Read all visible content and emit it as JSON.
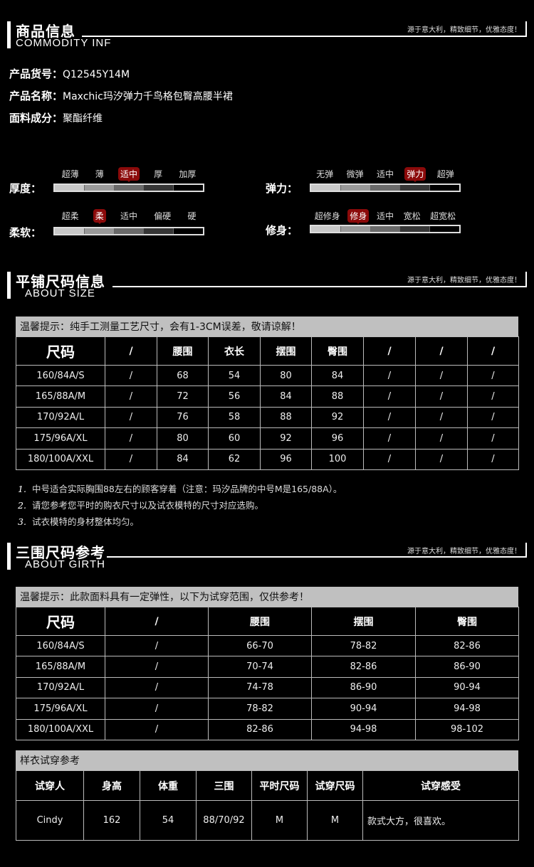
{
  "slogan": "源于意大利，精致细节，优雅态度！",
  "sections": [
    {
      "title": "商品信息",
      "subtitle": "COMMODITY INF"
    },
    {
      "title": "平铺尺码信息",
      "subtitle": "ABOUT SIZE"
    },
    {
      "title": "三围尺码参考",
      "subtitle": "ABOUT GIRTH"
    }
  ],
  "info": [
    {
      "label": "产品货号：",
      "value": "Q12545Y14M"
    },
    {
      "label": "产品名称：",
      "value": "Maxchic玛汐弹力千鸟格包臀高腰半裙"
    },
    {
      "label": "面料成分：",
      "value": "聚酯纤维"
    }
  ],
  "attributes": [
    {
      "label": "厚度：",
      "options": [
        "超薄",
        "薄",
        "适中",
        "厚",
        "加厚"
      ],
      "selected": 2
    },
    {
      "label": "弹力：",
      "options": [
        "无弹",
        "微弹",
        "适中",
        "弹力",
        "超弹"
      ],
      "selected": 3
    },
    {
      "label": "柔软：",
      "options": [
        "超柔",
        "柔",
        "适中",
        "偏硬",
        "硬"
      ],
      "selected": 1
    },
    {
      "label": "修身：",
      "options": [
        "超修身",
        "修身",
        "适中",
        "宽松",
        "超宽松"
      ],
      "selected": 1
    }
  ],
  "colors": {
    "highlight": "#8b0a0a",
    "tip_bar": "#c0c0c0"
  },
  "flat_size": {
    "tip": "温馨提示：纯手工测量工艺尺寸，会有1-3CM误差，敬请谅解！",
    "headers": [
      "尺码",
      "/",
      "腰围",
      "衣长",
      "摆围",
      "臀围",
      "/",
      "/",
      "/"
    ],
    "rows": [
      [
        "160/84A/S",
        "/",
        "68",
        "54",
        "80",
        "84",
        "/",
        "/",
        "/"
      ],
      [
        "165/88A/M",
        "/",
        "72",
        "56",
        "84",
        "88",
        "/",
        "/",
        "/"
      ],
      [
        "170/92A/L",
        "/",
        "76",
        "58",
        "88",
        "92",
        "/",
        "/",
        "/"
      ],
      [
        "175/96A/XL",
        "/",
        "80",
        "60",
        "92",
        "96",
        "/",
        "/",
        "/"
      ],
      [
        "180/100A/XXL",
        "/",
        "84",
        "62",
        "96",
        "100",
        "/",
        "/",
        "/"
      ]
    ]
  },
  "notes": [
    {
      "num": "1.",
      "text": "中号适合实际胸围88左右的顾客穿着（注意：玛汐品牌的中号M是165/88A）。"
    },
    {
      "num": "2.",
      "text": "请您参考您平时的购衣尺寸以及试衣模特的尺寸对应选购。"
    },
    {
      "num": "3.",
      "text": "试衣模特的身材整体均匀。"
    }
  ],
  "girth_size": {
    "tip": "温馨提示：此款面料具有一定弹性，以下为试穿范围，仅供参考！",
    "headers": [
      "尺码",
      "/",
      "腰围",
      "摆围",
      "臀围"
    ],
    "rows": [
      [
        "160/84A/S",
        "/",
        "66-70",
        "78-82",
        "82-86"
      ],
      [
        "165/88A/M",
        "/",
        "70-74",
        "82-86",
        "86-90"
      ],
      [
        "170/92A/L",
        "/",
        "74-78",
        "86-90",
        "90-94"
      ],
      [
        "175/96A/XL",
        "/",
        "78-82",
        "90-94",
        "94-98"
      ],
      [
        "180/100A/XXL",
        "/",
        "82-86",
        "94-98",
        "98-102"
      ]
    ]
  },
  "fitting": {
    "tip": "样衣试穿参考",
    "headers": [
      "试穿人",
      "身高",
      "体重",
      "三围",
      "平时尺码",
      "试穿尺码",
      "试穿感受"
    ],
    "rows": [
      [
        "Cindy",
        "162",
        "54",
        "88/70/92",
        "M",
        "M",
        "款式大方，很喜欢。"
      ]
    ]
  }
}
